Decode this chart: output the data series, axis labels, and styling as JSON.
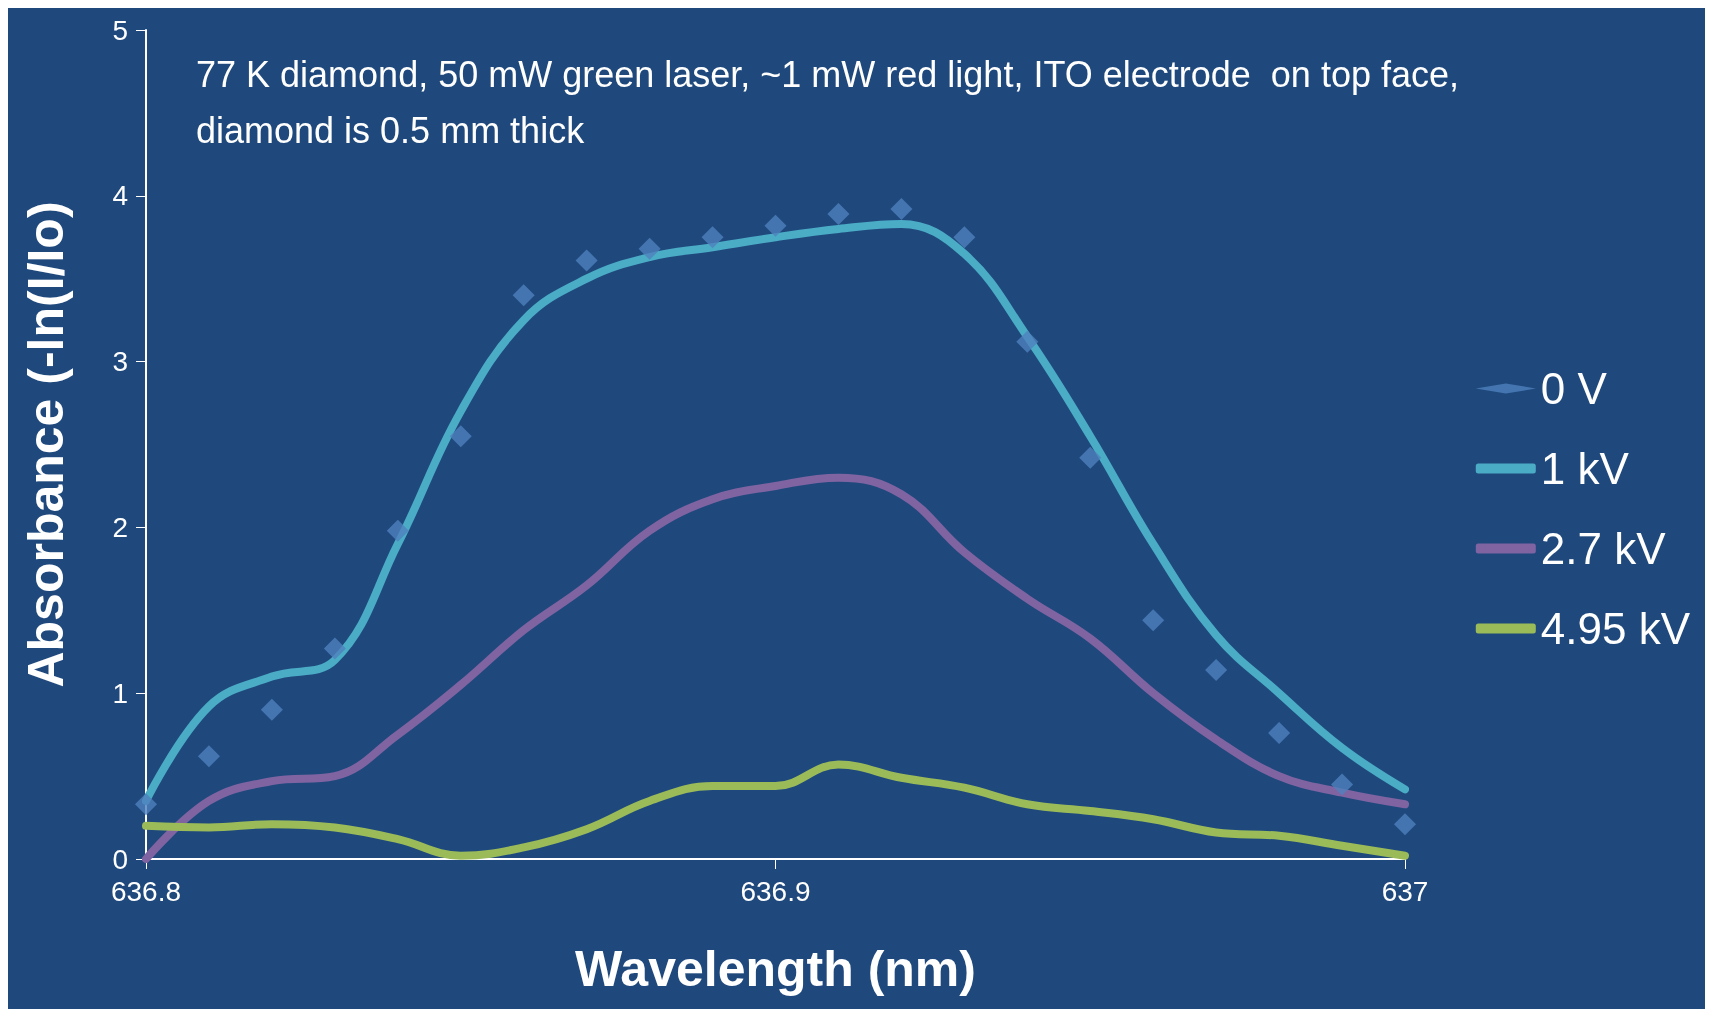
{
  "chart_data": {
    "type": "line",
    "xlabel": "Wavelength (nm)",
    "ylabel": "Absorbance (-ln(I/Io)",
    "annotations": [
      "77 K diamond, 50 mW green laser, ~1 mW red light, ITO electrode  on top face, diamond is 0.5 mm thick"
    ],
    "x": [
      636.8,
      636.81,
      636.82,
      636.83,
      636.84,
      636.85,
      636.86,
      636.87,
      636.88,
      636.89,
      636.9,
      636.91,
      636.92,
      636.93,
      636.94,
      636.95,
      636.96,
      636.97,
      636.98,
      636.99,
      637
    ],
    "xlim": [
      636.8,
      637
    ],
    "xticks": [
      636.8,
      636.9,
      637
    ],
    "ylim": [
      0,
      5
    ],
    "yticks": [
      0,
      1,
      2,
      3,
      4,
      5
    ],
    "grid": false,
    "legend": "right",
    "marker": "none",
    "line_style": "solid",
    "series": [
      {
        "name": "0 V",
        "type": "scatter",
        "marker": "diamond",
        "color": "#4f81bd",
        "values": [
          0.33,
          0.62,
          0.9,
          1.27,
          1.98,
          2.55,
          3.4,
          3.61,
          3.68,
          3.75,
          3.82,
          3.89,
          3.92,
          3.75,
          3.12,
          2.42,
          1.44,
          1.14,
          0.76,
          0.45,
          0.21
        ]
      },
      {
        "name": "1 kV",
        "color": "#4bacc6",
        "values": [
          0.35,
          0.92,
          1.1,
          1.2,
          1.9,
          2.7,
          3.25,
          3.5,
          3.63,
          3.69,
          3.75,
          3.8,
          3.83,
          3.65,
          3.15,
          2.55,
          1.9,
          1.35,
          1.0,
          0.67,
          0.42
        ]
      },
      {
        "name": "2.7 kV",
        "color": "#8064a2",
        "values": [
          0.0,
          0.35,
          0.47,
          0.5,
          0.75,
          1.05,
          1.38,
          1.65,
          1.98,
          2.17,
          2.25,
          2.3,
          2.2,
          1.85,
          1.57,
          1.33,
          1.0,
          0.72,
          0.5,
          0.4,
          0.33
        ]
      },
      {
        "name": "4.95 kV",
        "color": "#9bbb59",
        "values": [
          0.2,
          0.19,
          0.21,
          0.19,
          0.12,
          0.02,
          0.07,
          0.18,
          0.35,
          0.44,
          0.44,
          0.57,
          0.49,
          0.43,
          0.33,
          0.29,
          0.24,
          0.16,
          0.14,
          0.08,
          0.02
        ]
      }
    ]
  }
}
